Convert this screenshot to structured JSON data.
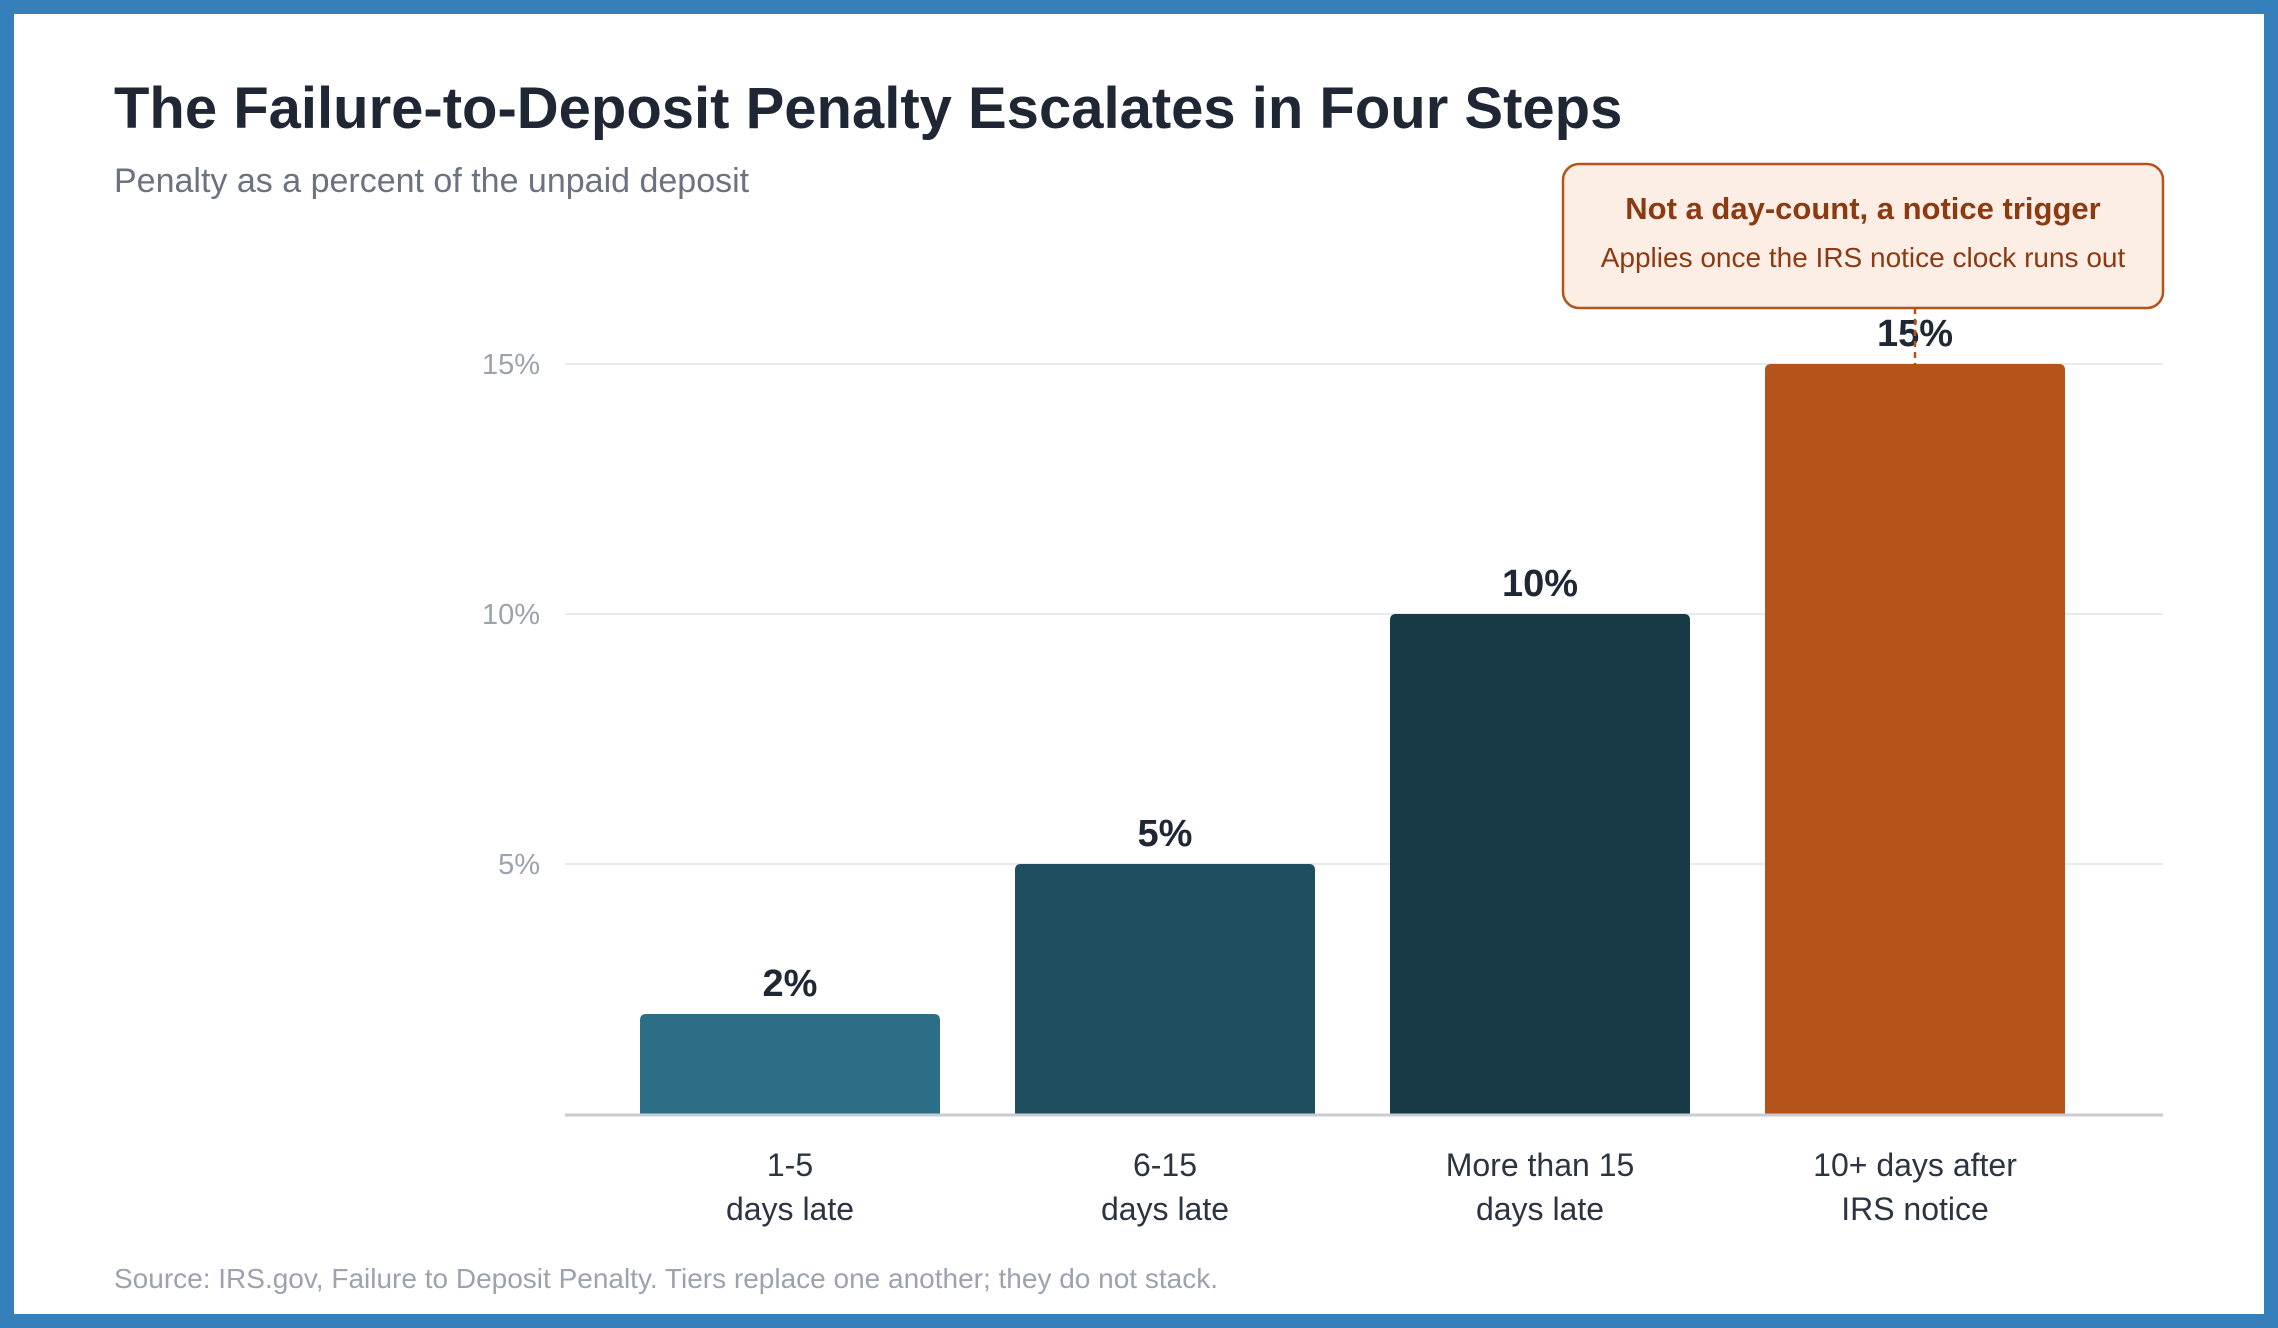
{
  "chart_data": {
    "type": "bar",
    "title": "The Failure-to-Deposit Penalty Escalates in Four Steps",
    "subtitle": "Penalty as a percent of the unpaid deposit",
    "categories": [
      [
        "1-5",
        "days late"
      ],
      [
        "6-15",
        "days late"
      ],
      [
        "More than 15",
        "days late"
      ],
      [
        "10+ days after",
        "IRS notice"
      ]
    ],
    "values": [
      2,
      5,
      10,
      15
    ],
    "value_labels": [
      "2%",
      "5%",
      "10%",
      "15%"
    ],
    "y_ticks": [
      {
        "value": 5,
        "label": "5%"
      },
      {
        "value": 10,
        "label": "10%"
      },
      {
        "value": 15,
        "label": "15%"
      }
    ],
    "ylim": [
      0,
      15
    ],
    "grid": true,
    "bar_colors": [
      "#2C6E85",
      "#1F4E5E",
      "#183A46",
      "#B4541A"
    ],
    "annotation": {
      "title": "Not a day-count, a notice trigger",
      "body": "Applies once the IRS notice clock runs out",
      "target_index": 3
    },
    "source": "Source: IRS.gov, Failure to Deposit Penalty. Tiers replace one another; they do not stack."
  },
  "colors": {
    "frame": "#3580BA",
    "callout_fill": "#FCEDE5",
    "callout_stroke": "#B4541A",
    "callout_text": "#8B3A12",
    "grid": "#E8EAED",
    "axis": "#C9CDD3"
  }
}
